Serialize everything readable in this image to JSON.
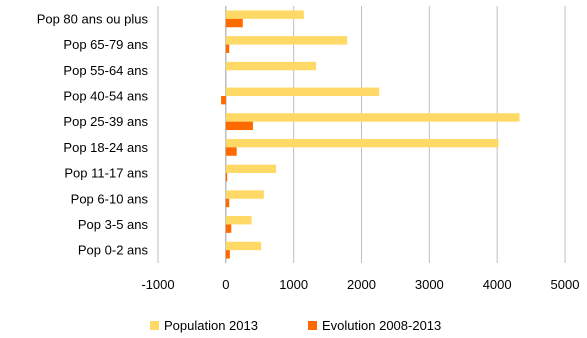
{
  "chart_data": {
    "type": "bar",
    "orientation": "horizontal",
    "categories": [
      "Pop 80 ans ou plus",
      "Pop 65-79 ans",
      "Pop 55-64 ans",
      "Pop 40-54 ans",
      "Pop 25-39 ans",
      "Pop 18-24 ans",
      "Pop 11-17 ans",
      "Pop 6-10 ans",
      "Pop 3-5 ans",
      "Pop 0-2 ans"
    ],
    "series": [
      {
        "name": "Population 2013",
        "color": "#FFD966",
        "values": [
          1150,
          1790,
          1330,
          2260,
          4330,
          4020,
          740,
          560,
          380,
          520
        ]
      },
      {
        "name": "Evolution 2008-2013",
        "color": "#FF6A00",
        "values": [
          250,
          50,
          0,
          -70,
          400,
          160,
          20,
          50,
          80,
          60
        ]
      }
    ],
    "xlim": [
      -1000,
      5000
    ],
    "xticks": [
      "-1000",
      "0",
      "1000",
      "2000",
      "3000",
      "4000",
      "5000"
    ],
    "gridlines": "vertical",
    "legend": "bottom"
  }
}
